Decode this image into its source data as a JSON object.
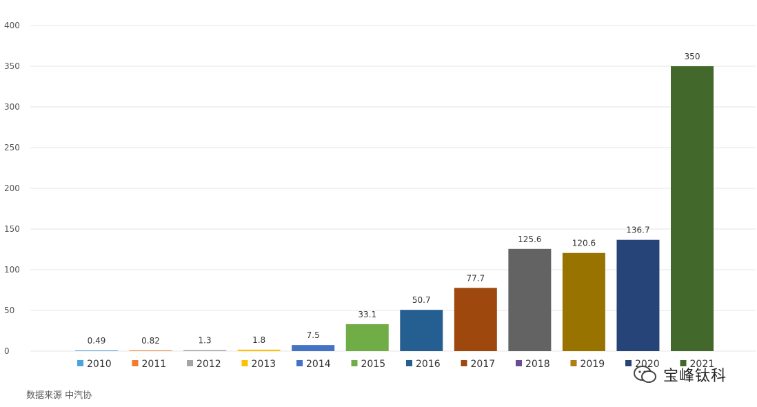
{
  "chart_data": {
    "type": "bar",
    "categories": [
      "2010",
      "2011",
      "2012",
      "2013",
      "2014",
      "2015",
      "2016",
      "2017",
      "2018",
      "2019",
      "2020",
      "2021"
    ],
    "values": [
      0.49,
      0.82,
      1.3,
      1.8,
      7.5,
      33.1,
      50.7,
      77.7,
      125.6,
      120.6,
      136.7,
      350
    ],
    "labels": [
      "0.49",
      "0.82",
      "1.3",
      "1.8",
      "7.5",
      "33.1",
      "50.7",
      "77.7",
      "125.6",
      "120.6",
      "136.7",
      "350"
    ],
    "colors": [
      "#4aa3df",
      "#ee7d31",
      "#a5a5a5",
      "#ffc000",
      "#4472c4",
      "#70ad47",
      "#255e91",
      "#9e480e",
      "#636363",
      "#997300",
      "#264478",
      "#43682b"
    ],
    "legend_colors": [
      "#4aa3df",
      "#ee7d31",
      "#a5a5a5",
      "#ffc000",
      "#4472c4",
      "#70ad47",
      "#255e91",
      "#9e480e",
      "#6a4c93",
      "#b07d10",
      "#264478",
      "#43682b"
    ],
    "ylim": [
      0,
      400
    ],
    "yticks": [
      0,
      50,
      100,
      150,
      200,
      250,
      300,
      350,
      400
    ],
    "grid": true,
    "legend_position": "bottom"
  },
  "source": "数据来源  中汽协",
  "watermark": {
    "text": "宝峰钛科"
  }
}
